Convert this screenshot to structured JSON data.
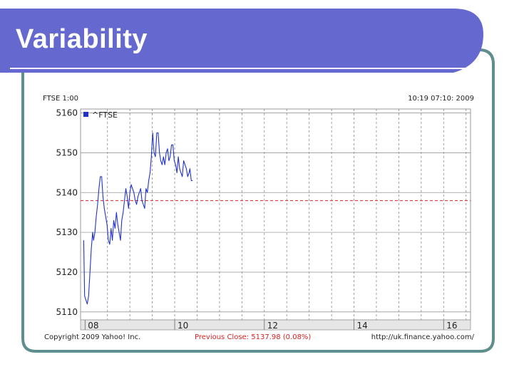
{
  "slide": {
    "title": "Variability",
    "colors": {
      "title_bar": "#6568cf",
      "frame_border": "#5f8f8d",
      "title_underline": "#ffffff"
    }
  },
  "chart_data": {
    "type": "line",
    "ticker_label": "FTSE 1:00",
    "timestamp": "10:19 07:10: 2009",
    "footer_left": "Copyright 2009 Yahoo! Inc.",
    "footer_center": "Previous Close: 5137.98 (0.08%)",
    "footer_right": "http://uk.finance.yahoo.com/",
    "legend": "^FTSE",
    "ylim": [
      5108,
      5161
    ],
    "yticks": [
      5110,
      5120,
      5130,
      5140,
      5150,
      5160
    ],
    "xlim": [
      7.9,
      16.6
    ],
    "xticks": [
      {
        "value": 8,
        "label": "08"
      },
      {
        "value": 10,
        "label": "10"
      },
      {
        "value": 12,
        "label": "12"
      },
      {
        "value": 14,
        "label": "14"
      },
      {
        "value": 16,
        "label": "16"
      }
    ],
    "previous_close": 5137.98,
    "grid": true,
    "colors": {
      "line": "#2233cc",
      "previous_close": "#dd2222",
      "grid": "#888888"
    },
    "series": [
      {
        "x": [
          7.97,
          7.99,
          8.02,
          8.05,
          8.08,
          8.11,
          8.14,
          8.17,
          8.19,
          8.22,
          8.25,
          8.28,
          8.31,
          8.34,
          8.37,
          8.4,
          8.43,
          8.46,
          8.49,
          8.52,
          8.55,
          8.58,
          8.61,
          8.64,
          8.67,
          8.7,
          8.73,
          8.76,
          8.79,
          8.82,
          8.85,
          8.88,
          8.91,
          8.94,
          8.97,
          9.0,
          9.03,
          9.06,
          9.09,
          9.12,
          9.15,
          9.18,
          9.21,
          9.24,
          9.27,
          9.3,
          9.33,
          9.36,
          9.39,
          9.42,
          9.45,
          9.48,
          9.51,
          9.54,
          9.57,
          9.6,
          9.63,
          9.66,
          9.69,
          9.72,
          9.75,
          9.78,
          9.81,
          9.84,
          9.87,
          9.9,
          9.93,
          9.96,
          9.99,
          10.02,
          10.05,
          10.08,
          10.11,
          10.14,
          10.17,
          10.2,
          10.23,
          10.26,
          10.29,
          10.32,
          10.34,
          10.37,
          10.4
        ],
        "y": [
          5128,
          5114,
          5113,
          5112,
          5114,
          5120,
          5126,
          5130,
          5128,
          5130,
          5134,
          5137,
          5141,
          5144,
          5144,
          5139,
          5136,
          5134,
          5132,
          5128,
          5127,
          5131,
          5128,
          5133,
          5131,
          5135,
          5132,
          5130,
          5128,
          5133,
          5135,
          5138,
          5141,
          5139,
          5136,
          5140,
          5142,
          5141,
          5140,
          5138,
          5137,
          5139,
          5140,
          5141,
          5138,
          5137,
          5136,
          5141,
          5140,
          5143,
          5145,
          5149,
          5155,
          5150,
          5149,
          5155,
          5155,
          5150,
          5148,
          5147,
          5149,
          5147,
          5150,
          5151,
          5148,
          5149,
          5152,
          5152,
          5148,
          5147,
          5145,
          5149,
          5146,
          5145,
          5144,
          5148,
          5147,
          5146,
          5144,
          5145,
          5146,
          5143,
          5143
        ]
      }
    ]
  }
}
